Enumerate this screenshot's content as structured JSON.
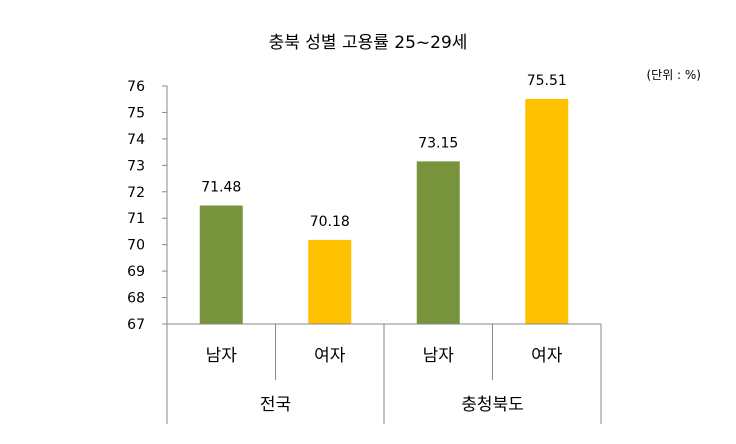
{
  "chart_data": {
    "type": "bar",
    "title": "충북 성별 고용률 25~29세",
    "unit_note": "(단위 : %)",
    "xlabel": "",
    "ylabel": "",
    "ylim": [
      67,
      76
    ],
    "yticks": [
      67,
      68,
      69,
      70,
      71,
      72,
      73,
      74,
      75,
      76
    ],
    "grid": false,
    "groups": [
      "전국",
      "충청북도"
    ],
    "categories": [
      "남자",
      "여자",
      "남자",
      "여자"
    ],
    "values": [
      71.48,
      70.18,
      73.15,
      75.51
    ],
    "value_labels": [
      "71.48",
      "70.18",
      "73.15",
      "75.51"
    ],
    "colors": [
      "#77933c",
      "#ffc000",
      "#77933c",
      "#ffc000"
    ]
  }
}
